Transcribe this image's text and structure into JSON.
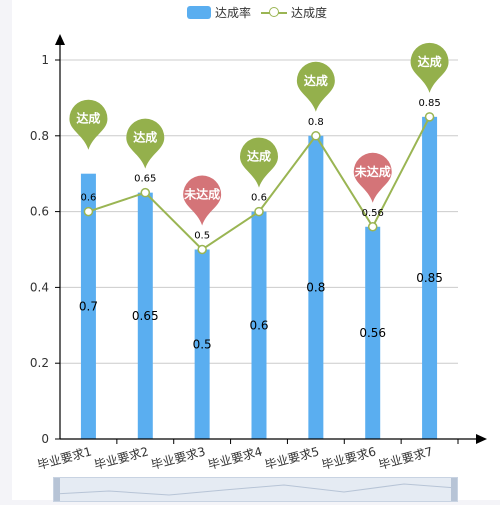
{
  "legend": {
    "bar_label": "达成率",
    "line_label": "达成度"
  },
  "colors": {
    "bar": "#5aaef0",
    "line": "#9ab553",
    "pin_achieved": "#94b04c",
    "pin_not_achieved": "#d47478",
    "grid": "#cccccc",
    "axis": "#000000"
  },
  "chart_data": {
    "type": "bar",
    "categories": [
      "毕业要求1",
      "毕业要求2",
      "毕业要求3",
      "毕业要求4",
      "毕业要求5",
      "毕业要求6",
      "毕业要求7"
    ],
    "series": [
      {
        "name": "达成率",
        "type": "bar",
        "values": [
          0.7,
          0.65,
          0.5,
          0.6,
          0.8,
          0.56,
          0.85
        ]
      },
      {
        "name": "达成度",
        "type": "line",
        "values": [
          0.6,
          0.65,
          0.5,
          0.6,
          0.8,
          0.56,
          0.85
        ]
      }
    ],
    "pins": [
      "达成",
      "达成",
      "未达成",
      "达成",
      "达成",
      "未达成",
      "达成"
    ],
    "y_ticks": [
      0,
      0.2,
      0.4,
      0.6,
      0.8,
      1
    ],
    "ylim": [
      0,
      1
    ],
    "grid": true,
    "legend_position": "top-center",
    "title": "",
    "xlabel": "",
    "ylabel": ""
  }
}
